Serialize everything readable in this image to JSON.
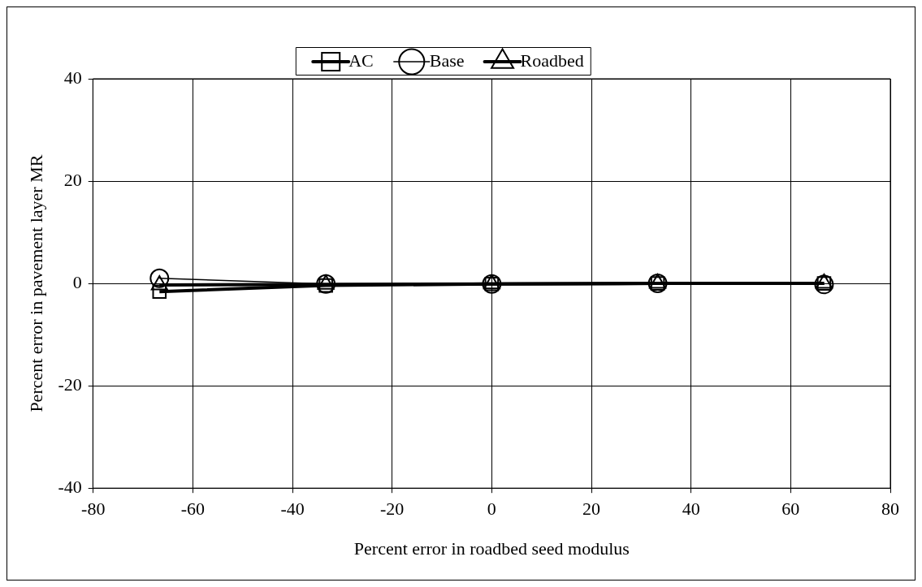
{
  "chart_data": {
    "type": "line",
    "xlabel": "Percent error in roadbed seed modulus",
    "ylabel": "Percent error in pavement layer MR",
    "x": [
      -66.7,
      -33.3,
      0,
      33.3,
      66.7
    ],
    "series": [
      {
        "name": "AC",
        "color": "#000000",
        "values": [
          -1.6,
          -0.4,
          -0.1,
          0,
          0
        ],
        "marker": "square"
      },
      {
        "name": "Base",
        "color": "#000000",
        "values": [
          1.0,
          -0.1,
          -0.1,
          0,
          -0.2
        ],
        "marker": "circle"
      },
      {
        "name": "Roadbed",
        "color": "#000000",
        "values": [
          -0.3,
          -0.2,
          -0.1,
          0,
          0
        ],
        "marker": "triangle"
      }
    ],
    "xlim": [
      -80,
      80
    ],
    "xticks": [
      -80,
      -60,
      -40,
      -20,
      0,
      20,
      40,
      60,
      80
    ],
    "ylim": [
      -40,
      40
    ],
    "yticks": [
      -40,
      -20,
      0,
      20,
      40
    ],
    "grid": true,
    "legend": "top",
    "line_style": "solid"
  }
}
